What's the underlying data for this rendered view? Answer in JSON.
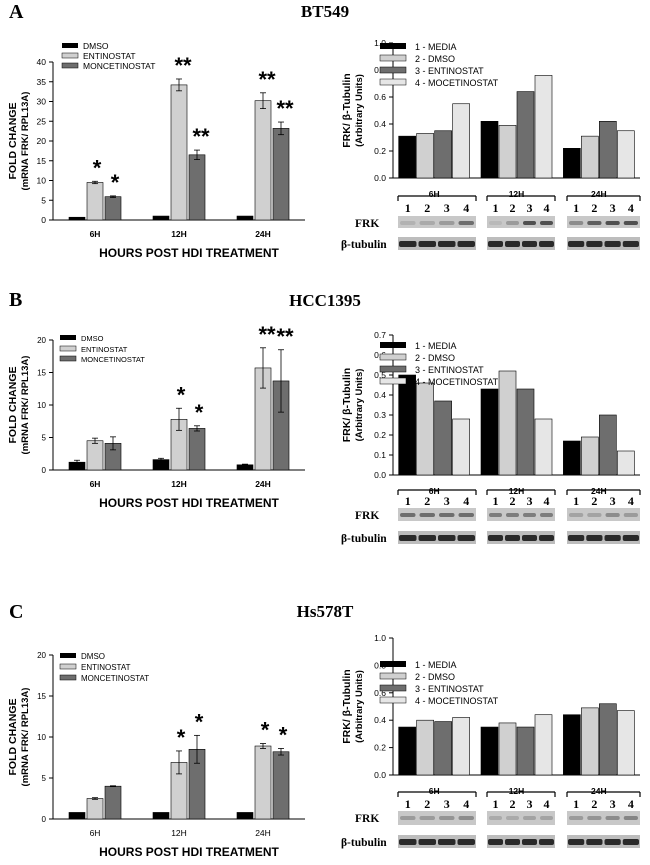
{
  "figure": {
    "colors": {
      "media": "#000000",
      "dmso": "#d0d0d0",
      "entinostat": "#6e6e6e",
      "mocetinostat": "#e6e6e6"
    }
  },
  "panels": [
    {
      "letter": "A",
      "cell_line": "BT549",
      "left_legend": [
        "DMSO",
        "ENTINOSTAT",
        "MONCETINOSTAT"
      ],
      "right_legend": [
        "1 - MEDIA",
        "2 - DMSO",
        "3 - ENTINOSTAT",
        "4 - MOCETINOSTAT"
      ],
      "blot_labels": [
        "FRK",
        "β-tubulin"
      ],
      "lane_numbers": [
        "1",
        "2",
        "3",
        "4"
      ]
    },
    {
      "letter": "B",
      "cell_line": "HCC1395",
      "left_legend": [
        "DMSO",
        "ENTINOSTAT",
        "MONCETINOSTAT"
      ],
      "right_legend": [
        "1 - MEDIA",
        "2 - DMSO",
        "3 - ENTINOSTAT",
        "4 - MOCETINOSTAT"
      ],
      "blot_labels": [
        "FRK",
        "β-tubulin"
      ],
      "lane_numbers": [
        "1",
        "2",
        "3",
        "4"
      ]
    },
    {
      "letter": "C",
      "cell_line": "Hs578T",
      "left_legend": [
        "DMSO",
        "ENTINOSTAT",
        "MONCETINOSTAT"
      ],
      "right_legend": [
        "1 - MEDIA",
        "2 - DMSO",
        "3 - ENTINOSTAT",
        "4 - MOCETINOSTAT"
      ],
      "blot_labels": [
        "FRK",
        "β-tubulin"
      ],
      "lane_numbers": [
        "1",
        "2",
        "3",
        "4"
      ]
    }
  ],
  "chart_data": [
    {
      "panel": "A",
      "side": "left",
      "type": "bar",
      "title": "BT549",
      "ylabel": [
        "FOLD CHANGE",
        "(mRNA FRK/ RPL13A)"
      ],
      "xlabel": "HOURS POST HDI TREATMENT",
      "categories": [
        "6H",
        "12H",
        "24H"
      ],
      "ylim": [
        0,
        40
      ],
      "yticks": [
        "0",
        "5",
        "10",
        "15",
        "20",
        "25",
        "30",
        "35",
        "40"
      ],
      "series": [
        {
          "name": "",
          "values": [
            0.7,
            1.0,
            1.0
          ],
          "errors": [
            0,
            0,
            0
          ]
        },
        {
          "name": "",
          "values": [
            9.5,
            34.2,
            30.2
          ],
          "errors": [
            0.3,
            1.5,
            2.0
          ]
        },
        {
          "name": "",
          "values": [
            5.9,
            16.5,
            23.2
          ],
          "errors": [
            0.2,
            1.2,
            1.6
          ]
        }
      ],
      "annotations": [
        [
          "",
          "*",
          "*"
        ],
        [
          "",
          "**",
          "**"
        ],
        [
          "",
          "**",
          "**"
        ]
      ]
    },
    {
      "panel": "A",
      "side": "right",
      "type": "bar",
      "ylabel": [
        "FRK/ β-Tubulin",
        "(Arbitrary Units)"
      ],
      "categories": [
        "6H",
        "12H",
        "24H"
      ],
      "ylim": [
        0,
        1.0
      ],
      "yticks": [
        "0.0",
        "0.2",
        "0.4",
        "0.6",
        "0.8",
        "1.0"
      ],
      "series": [
        {
          "name": "",
          "values": [
            0.31,
            0.42,
            0.22
          ]
        },
        {
          "name": "",
          "values": [
            0.33,
            0.39,
            0.31
          ]
        },
        {
          "name": "",
          "values": [
            0.35,
            0.64,
            0.42
          ]
        },
        {
          "name": "",
          "values": [
            0.55,
            0.76,
            0.35
          ]
        }
      ]
    },
    {
      "panel": "B",
      "side": "left",
      "type": "bar",
      "title": "HCC1395",
      "ylabel": [
        "FOLD CHANGE",
        "(mRNA FRK/ RPL13A)"
      ],
      "xlabel": "HOURS POST HDI TREATMENT",
      "categories": [
        "6H",
        "12H",
        "24H"
      ],
      "ylim": [
        0,
        20
      ],
      "yticks": [
        "0",
        "5",
        "10",
        "15",
        "20"
      ],
      "series": [
        {
          "name": "",
          "values": [
            1.2,
            1.6,
            0.8
          ],
          "errors": [
            0.3,
            0.2,
            0.1
          ]
        },
        {
          "name": "",
          "values": [
            4.5,
            7.8,
            15.7
          ],
          "errors": [
            0.4,
            1.7,
            3.1
          ]
        },
        {
          "name": "",
          "values": [
            4.1,
            6.4,
            13.7
          ],
          "errors": [
            1.0,
            0.4,
            4.8
          ]
        }
      ],
      "annotations": [
        [
          "",
          "",
          ""
        ],
        [
          "",
          "*",
          "*"
        ],
        [
          "",
          "**",
          "**"
        ]
      ]
    },
    {
      "panel": "B",
      "side": "right",
      "type": "bar",
      "ylabel": [
        "FRK/ β-Tubulin",
        "(Arbitrary Units)"
      ],
      "categories": [
        "6H",
        "12H",
        "24H"
      ],
      "ylim": [
        0,
        0.7
      ],
      "yticks": [
        "0.0",
        "0.1",
        "0.2",
        "0.3",
        "0.4",
        "0.5",
        "0.6",
        "0.7"
      ],
      "series": [
        {
          "name": "",
          "values": [
            0.5,
            0.43,
            0.17
          ]
        },
        {
          "name": "",
          "values": [
            0.46,
            0.52,
            0.19
          ]
        },
        {
          "name": "",
          "values": [
            0.37,
            0.43,
            0.3
          ]
        },
        {
          "name": "",
          "values": [
            0.28,
            0.28,
            0.12
          ]
        }
      ]
    },
    {
      "panel": "C",
      "side": "left",
      "type": "bar",
      "title": "Hs578T",
      "ylabel": [
        "FOLD CHANGE",
        "(mRNA FRK/ RPL13A)"
      ],
      "xlabel": "HOURS POST HDI TREATMENT",
      "categories": [
        "6H",
        "12H",
        "24H"
      ],
      "ylim": [
        0,
        20
      ],
      "yticks": [
        "0",
        "5",
        "10",
        "15",
        "20"
      ],
      "series": [
        {
          "name": "",
          "values": [
            0.8,
            0.8,
            0.8
          ],
          "errors": [
            0,
            0,
            0
          ]
        },
        {
          "name": "",
          "values": [
            2.5,
            6.9,
            8.9
          ],
          "errors": [
            0.1,
            1.4,
            0.3
          ]
        },
        {
          "name": "",
          "values": [
            4.0,
            8.5,
            8.2
          ],
          "errors": [
            0.05,
            1.7,
            0.4
          ]
        }
      ],
      "annotations": [
        [
          "",
          "",
          ""
        ],
        [
          "",
          "*",
          "*"
        ],
        [
          "",
          "*",
          "*"
        ]
      ]
    },
    {
      "panel": "C",
      "side": "right",
      "type": "bar",
      "ylabel": [
        "FRK/ β-Tubulin",
        "(Arbitrary Units)"
      ],
      "categories": [
        "6H",
        "12H",
        "24H"
      ],
      "ylim": [
        0,
        1.0
      ],
      "yticks": [
        "0.0",
        "0.2",
        "0.4",
        "0.6",
        "0.8",
        "1.0"
      ],
      "series": [
        {
          "name": "",
          "values": [
            0.35,
            0.35,
            0.44
          ]
        },
        {
          "name": "",
          "values": [
            0.4,
            0.38,
            0.49
          ]
        },
        {
          "name": "",
          "values": [
            0.39,
            0.35,
            0.52
          ]
        },
        {
          "name": "",
          "values": [
            0.42,
            0.44,
            0.47
          ]
        }
      ]
    }
  ]
}
